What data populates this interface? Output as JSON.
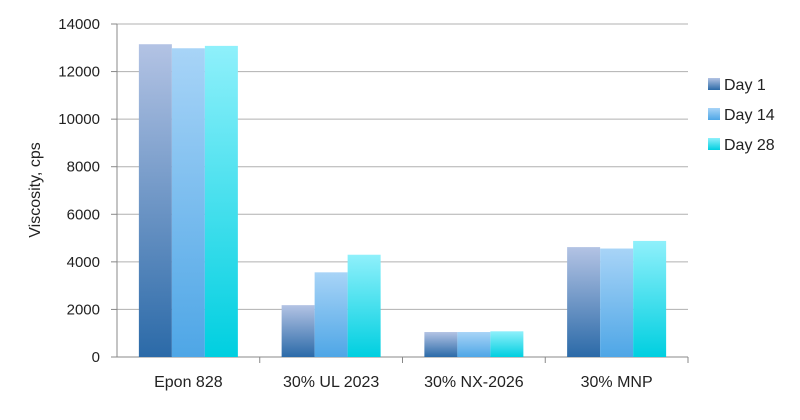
{
  "chart_data": {
    "type": "bar",
    "ylabel": "Viscosity, cps",
    "xlabel": "",
    "title": "",
    "ylim": [
      0,
      14000
    ],
    "yticks": [
      0,
      2000,
      4000,
      6000,
      8000,
      10000,
      12000,
      14000
    ],
    "grid": true,
    "legend_position": "right",
    "categories": [
      "Epon 828",
      "30% UL 2023",
      "30% NX-2026",
      "30% MNP"
    ],
    "series": [
      {
        "name": "Day 1",
        "values": [
          13150,
          2180,
          1050,
          4620
        ],
        "color_top": "#b3c3e4",
        "color_bottom": "#2b6aa8"
      },
      {
        "name": "Day 14",
        "values": [
          12980,
          3560,
          1050,
          4560
        ],
        "color_top": "#a8d4f7",
        "color_bottom": "#4ea6e6"
      },
      {
        "name": "Day 28",
        "values": [
          13080,
          4300,
          1080,
          4880
        ],
        "color_top": "#8ff0fb",
        "color_bottom": "#00cfe0"
      }
    ]
  }
}
